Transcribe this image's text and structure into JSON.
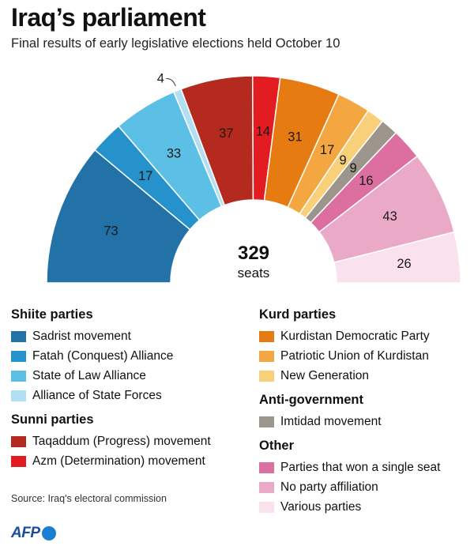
{
  "title": "Iraq’s parliament",
  "subtitle": "Final results of early legislative elections held October 10",
  "chart_data": {
    "type": "pie",
    "subtype": "semicircle-hemicycle",
    "total": 329,
    "total_label": "seats",
    "series": [
      {
        "name": "Sadrist movement",
        "value": 73,
        "color": "#2271a7"
      },
      {
        "name": "Fatah (Conquest) Alliance",
        "value": 17,
        "color": "#2592cb"
      },
      {
        "name": "State of Law Alliance",
        "value": 33,
        "color": "#5cc0e6"
      },
      {
        "name": "Alliance of State Forces",
        "value": 4,
        "color": "#b2dff1"
      },
      {
        "name": "Taqaddum (Progress) movement",
        "value": 37,
        "color": "#b42a1f"
      },
      {
        "name": "Azm (Determination) movement",
        "value": 14,
        "color": "#e21c21"
      },
      {
        "name": "Kurdistan Democratic Party",
        "value": 31,
        "color": "#e67b12"
      },
      {
        "name": "Patriotic Union of Kurdistan",
        "value": 17,
        "color": "#f4a640"
      },
      {
        "name": "New Generation",
        "value": 9,
        "color": "#f8d07a"
      },
      {
        "name": "Imtidad movement",
        "value": 9,
        "color": "#9c958b"
      },
      {
        "name": "Parties that won a single seat",
        "value": 16,
        "color": "#dc6f9f"
      },
      {
        "name": "No party affiliation",
        "value": 43,
        "color": "#eba9c8"
      },
      {
        "name": "Various parties",
        "value": 26,
        "color": "#f9e2ee"
      }
    ]
  },
  "legend": {
    "left": [
      {
        "title": "Shiite parties",
        "items": [
          "Sadrist movement",
          "Fatah (Conquest) Alliance",
          "State of Law Alliance",
          "Alliance of State Forces"
        ]
      },
      {
        "title": "Sunni parties",
        "items": [
          "Taqaddum (Progress) movement",
          "Azm (Determination) movement"
        ]
      }
    ],
    "right": [
      {
        "title": "Kurd parties",
        "items": [
          "Kurdistan Democratic Party",
          "Patriotic Union of Kurdistan",
          "New Generation"
        ]
      },
      {
        "title": "Anti-government",
        "items": [
          "Imtidad movement"
        ]
      },
      {
        "title": "Other",
        "items": [
          "Parties that won a single seat",
          "No party affiliation",
          "Various parties"
        ]
      }
    ]
  },
  "source": "Source: Iraq's electoral commission",
  "logo": "AFP"
}
